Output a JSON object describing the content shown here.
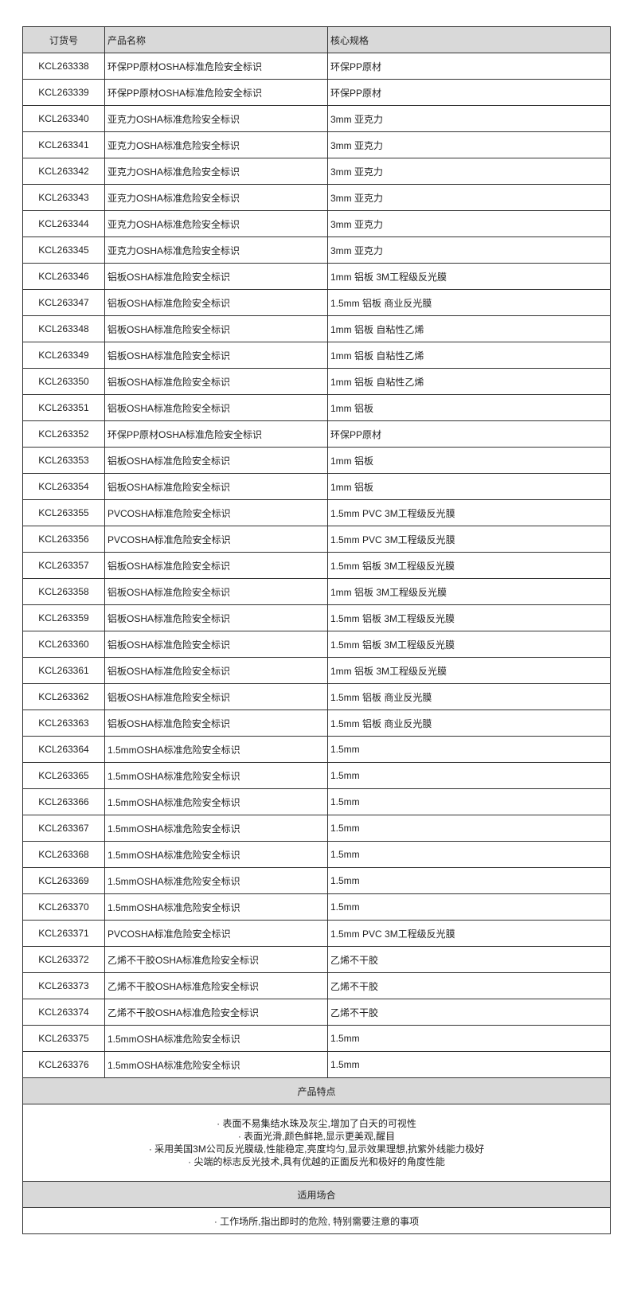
{
  "header": {
    "col_id": "订货号",
    "col_name": "产品名称",
    "col_spec": "核心规格"
  },
  "rows": [
    [
      "KCL263338",
      "环保PP原材OSHA标准危险安全标识",
      "环保PP原材"
    ],
    [
      "KCL263339",
      "环保PP原材OSHA标准危险安全标识",
      "环保PP原材"
    ],
    [
      "KCL263340",
      "亚克力OSHA标准危险安全标识",
      "3mm 亚克力"
    ],
    [
      "KCL263341",
      "亚克力OSHA标准危险安全标识",
      "3mm 亚克力"
    ],
    [
      "KCL263342",
      "亚克力OSHA标准危险安全标识",
      "3mm 亚克力"
    ],
    [
      "KCL263343",
      "亚克力OSHA标准危险安全标识",
      "3mm 亚克力"
    ],
    [
      "KCL263344",
      "亚克力OSHA标准危险安全标识",
      "3mm 亚克力"
    ],
    [
      "KCL263345",
      "亚克力OSHA标准危险安全标识",
      "3mm 亚克力"
    ],
    [
      "KCL263346",
      "铝板OSHA标准危险安全标识",
      "1mm 铝板 3M工程级反光膜"
    ],
    [
      "KCL263347",
      "铝板OSHA标准危险安全标识",
      "1.5mm 铝板 商业反光膜"
    ],
    [
      "KCL263348",
      "铝板OSHA标准危险安全标识",
      "1mm 铝板 自粘性乙烯"
    ],
    [
      "KCL263349",
      "铝板OSHA标准危险安全标识",
      "1mm 铝板 自粘性乙烯"
    ],
    [
      "KCL263350",
      "铝板OSHA标准危险安全标识",
      "1mm 铝板 自粘性乙烯"
    ],
    [
      "KCL263351",
      "铝板OSHA标准危险安全标识",
      "1mm 铝板"
    ],
    [
      "KCL263352",
      "环保PP原材OSHA标准危险安全标识",
      "环保PP原材"
    ],
    [
      "KCL263353",
      "铝板OSHA标准危险安全标识",
      "1mm 铝板"
    ],
    [
      "KCL263354",
      "铝板OSHA标准危险安全标识",
      "1mm 铝板"
    ],
    [
      "KCL263355",
      "PVCOSHA标准危险安全标识",
      "1.5mm PVC 3M工程级反光膜"
    ],
    [
      "KCL263356",
      "PVCOSHA标准危险安全标识",
      "1.5mm PVC 3M工程级反光膜"
    ],
    [
      "KCL263357",
      "铝板OSHA标准危险安全标识",
      "1.5mm 铝板 3M工程级反光膜"
    ],
    [
      "KCL263358",
      "铝板OSHA标准危险安全标识",
      "1mm 铝板 3M工程级反光膜"
    ],
    [
      "KCL263359",
      "铝板OSHA标准危险安全标识",
      "1.5mm 铝板 3M工程级反光膜"
    ],
    [
      "KCL263360",
      "铝板OSHA标准危险安全标识",
      "1.5mm 铝板 3M工程级反光膜"
    ],
    [
      "KCL263361",
      "铝板OSHA标准危险安全标识",
      "1mm 铝板 3M工程级反光膜"
    ],
    [
      "KCL263362",
      "铝板OSHA标准危险安全标识",
      "1.5mm 铝板 商业反光膜"
    ],
    [
      "KCL263363",
      "铝板OSHA标准危险安全标识",
      "1.5mm 铝板 商业反光膜"
    ],
    [
      "KCL263364",
      "1.5mmOSHA标准危险安全标识",
      "1.5mm"
    ],
    [
      "KCL263365",
      "1.5mmOSHA标准危险安全标识",
      "1.5mm"
    ],
    [
      "KCL263366",
      "1.5mmOSHA标准危险安全标识",
      "1.5mm"
    ],
    [
      "KCL263367",
      "1.5mmOSHA标准危险安全标识",
      "1.5mm"
    ],
    [
      "KCL263368",
      "1.5mmOSHA标准危险安全标识",
      "1.5mm"
    ],
    [
      "KCL263369",
      "1.5mmOSHA标准危险安全标识",
      "1.5mm"
    ],
    [
      "KCL263370",
      "1.5mmOSHA标准危险安全标识",
      "1.5mm"
    ],
    [
      "KCL263371",
      "PVCOSHA标准危险安全标识",
      "1.5mm PVC 3M工程级反光膜"
    ],
    [
      "KCL263372",
      "乙烯不干胶OSHA标准危险安全标识",
      "乙烯不干胶"
    ],
    [
      "KCL263373",
      "乙烯不干胶OSHA标准危险安全标识",
      "乙烯不干胶"
    ],
    [
      "KCL263374",
      "乙烯不干胶OSHA标准危险安全标识",
      "乙烯不干胶"
    ],
    [
      "KCL263375",
      "1.5mmOSHA标准危险安全标识",
      "1.5mm"
    ],
    [
      "KCL263376",
      "1.5mmOSHA标准危险安全标识",
      "1.5mm"
    ]
  ],
  "features": {
    "title": "产品特点",
    "items": [
      "· 表面不易集结水珠及灰尘,增加了白天的可视性",
      "· 表面光滑,颜色鲜艳,显示更美观,醒目",
      "· 采用美国3M公司反光膜级,性能稳定,亮度均匀,显示效果理想,抗紫外线能力极好",
      "· 尖端的标志反光技术,具有优越的正面反光和极好的角度性能"
    ]
  },
  "application": {
    "title": "适用场合",
    "text": "· 工作场所,指出即时的危险, 特别需要注意的事项"
  }
}
